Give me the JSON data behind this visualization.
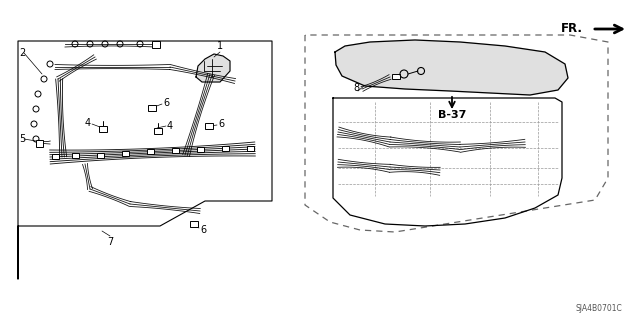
{
  "bg_color": "#ffffff",
  "part_number": "SJA4B0701C",
  "diagram_ref": "B-37",
  "fr_label": "FR.",
  "line_color": "#000000",
  "text_color": "#000000",
  "dash_color": "#666666"
}
